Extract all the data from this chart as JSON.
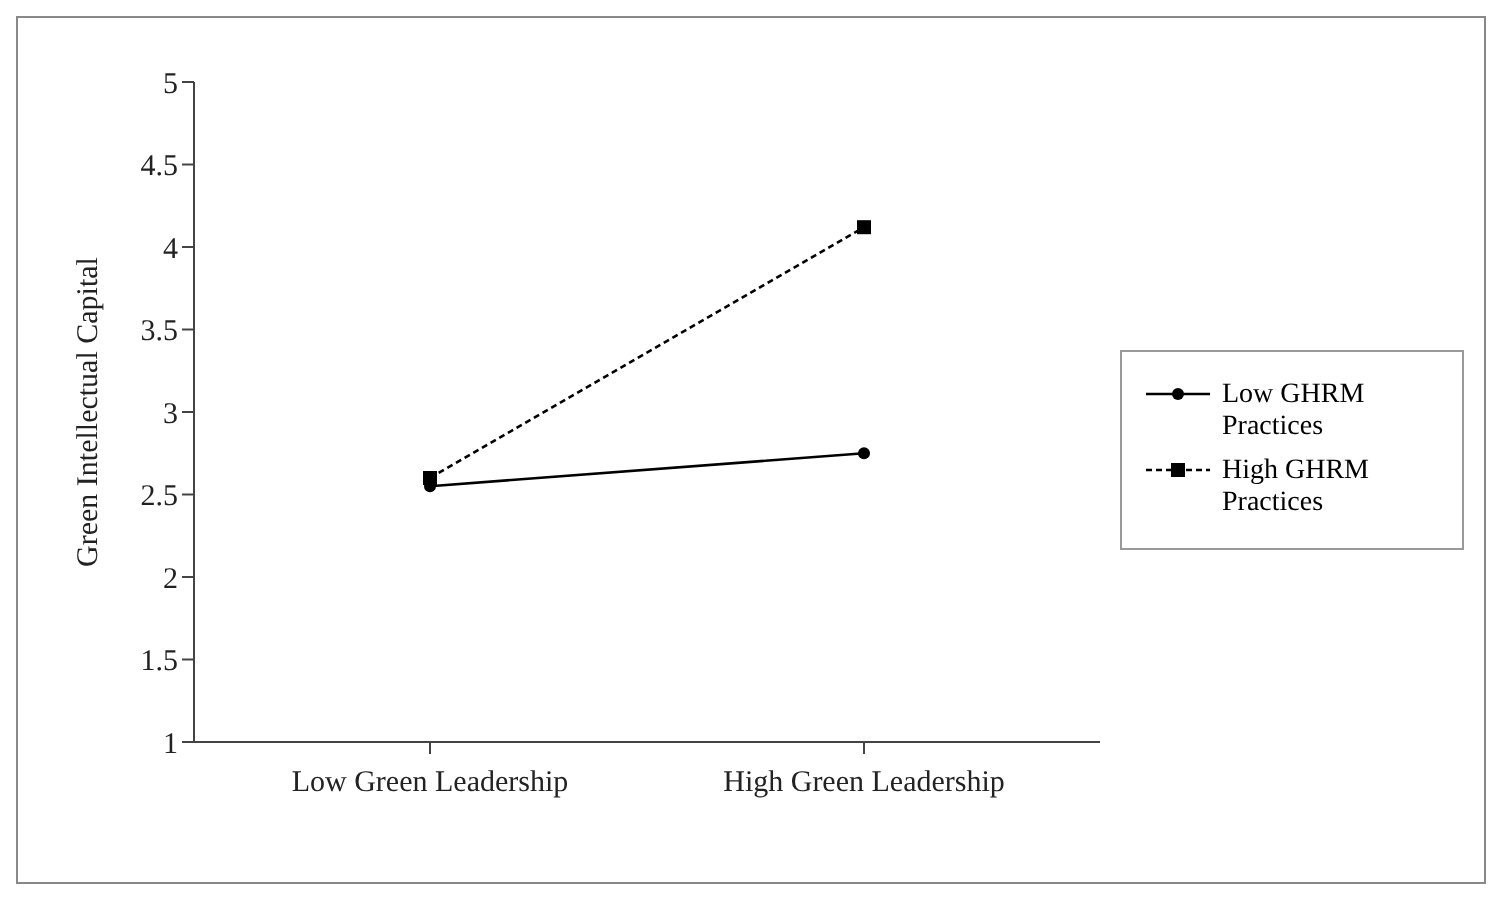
{
  "chart_data": {
    "type": "line",
    "ylabel": "Green Intellectual Capital",
    "categories": [
      "Low Green Leadership",
      "High Green Leadership"
    ],
    "series": [
      {
        "name": "Low GHRM Practices",
        "color": "#000000",
        "values": [
          2.55,
          2.75
        ],
        "marker": "circle",
        "line_style": "solid"
      },
      {
        "name": "High GHRM Practices",
        "color": "#000000",
        "values": [
          2.6,
          4.12
        ],
        "marker": "square",
        "line_style": "dashed"
      }
    ],
    "ylim": [
      1,
      5
    ],
    "yticks": [
      1,
      1.5,
      2,
      2.5,
      3,
      3.5,
      4,
      4.5,
      5
    ],
    "grid": false,
    "legend": "right"
  }
}
